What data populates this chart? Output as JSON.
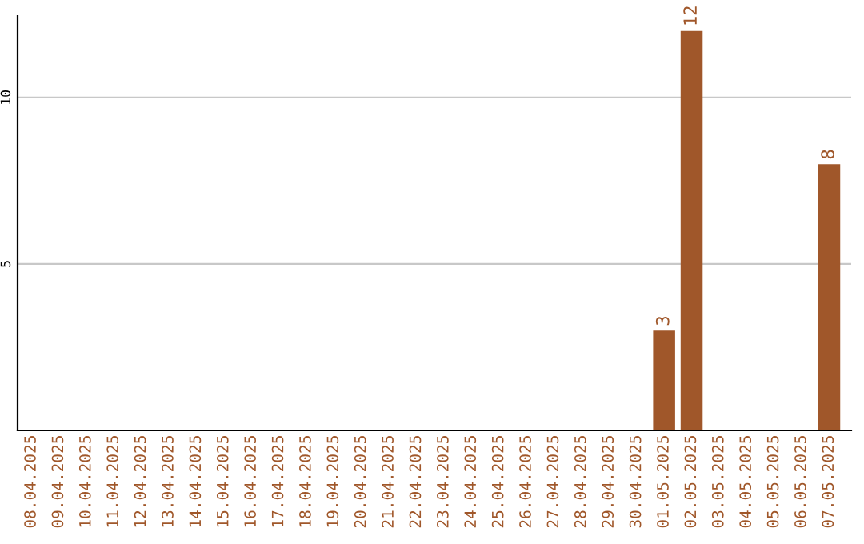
{
  "chart_data": {
    "type": "bar",
    "categories": [
      "08.04.2025",
      "09.04.2025",
      "10.04.2025",
      "11.04.2025",
      "12.04.2025",
      "13.04.2025",
      "14.04.2025",
      "15.04.2025",
      "16.04.2025",
      "17.04.2025",
      "18.04.2025",
      "19.04.2025",
      "20.04.2025",
      "21.04.2025",
      "22.04.2025",
      "23.04.2025",
      "24.04.2025",
      "25.04.2025",
      "26.04.2025",
      "27.04.2025",
      "28.04.2025",
      "29.04.2025",
      "30.04.2025",
      "01.05.2025",
      "02.05.2025",
      "03.05.2025",
      "04.05.2025",
      "05.05.2025",
      "06.05.2025",
      "07.05.2025"
    ],
    "values": [
      0,
      0,
      0,
      0,
      0,
      0,
      0,
      0,
      0,
      0,
      0,
      0,
      0,
      0,
      0,
      0,
      0,
      0,
      0,
      0,
      0,
      0,
      0,
      3,
      12,
      0,
      0,
      0,
      0,
      8
    ],
    "value_labels": [
      null,
      null,
      null,
      null,
      null,
      null,
      null,
      null,
      null,
      null,
      null,
      null,
      null,
      null,
      null,
      null,
      null,
      null,
      null,
      null,
      null,
      null,
      null,
      "3",
      "12",
      null,
      null,
      null,
      null,
      "8"
    ],
    "color": "#a0572a",
    "ylim": [
      0,
      12.45
    ],
    "yticks": [
      5,
      10
    ],
    "grid": "y",
    "legend": false
  }
}
